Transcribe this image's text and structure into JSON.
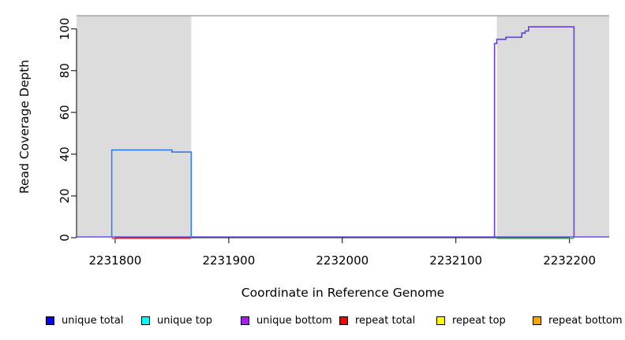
{
  "chart_data": {
    "type": "line",
    "title": "",
    "xlabel": "Coordinate in Reference Genome",
    "ylabel": "Read Coverage Depth",
    "xlim": [
      2231766,
      2232235
    ],
    "ylim": [
      0,
      106.3
    ],
    "x_ticks": [
      2231800,
      2231900,
      2232000,
      2232100,
      2232200
    ],
    "y_ticks": [
      0,
      20,
      40,
      60,
      80,
      100
    ],
    "grid": false,
    "shaded_regions": [
      {
        "name": "repeat-region-left",
        "x0": 2231766,
        "x1": 2231867,
        "color": "#dcdcdc"
      },
      {
        "name": "repeat-region-right",
        "x0": 2232136,
        "x1": 2232235,
        "color": "#dcdcdc"
      }
    ],
    "top_boundary_line": {
      "y": 106.3,
      "color": "#a4a4a4"
    },
    "series": [
      {
        "name": "zero-coverage baseline",
        "role": "baseline",
        "color": "#6b5ce8",
        "points": [
          [
            2231766,
            0
          ],
          [
            2232235,
            0
          ]
        ]
      },
      {
        "name": "repeat total at zero (left region)",
        "role": "sub-baseline",
        "color": "#ee4453",
        "points": [
          [
            2231797,
            0
          ],
          [
            2231867,
            0
          ]
        ]
      },
      {
        "name": "unique top at zero (right region)",
        "role": "sub-baseline",
        "color": "#4fae62",
        "points": [
          [
            2232136,
            0
          ],
          [
            2232204,
            0
          ]
        ]
      },
      {
        "name": "unique coverage block (left)",
        "role": "block",
        "color": "#2f7df5",
        "points": [
          [
            2231797,
            0
          ],
          [
            2231797,
            42
          ],
          [
            2231850,
            42
          ],
          [
            2231850,
            41
          ],
          [
            2231867,
            41
          ],
          [
            2231867,
            0
          ]
        ]
      },
      {
        "name": "unique coverage block (right)",
        "role": "block",
        "color": "#6a3bee",
        "points": [
          [
            2232134,
            0
          ],
          [
            2232134,
            93
          ],
          [
            2232136,
            93
          ],
          [
            2232136,
            95
          ],
          [
            2232144,
            95
          ],
          [
            2232144,
            96
          ],
          [
            2232158,
            96
          ],
          [
            2232158,
            98
          ],
          [
            2232161,
            98
          ],
          [
            2232161,
            99
          ],
          [
            2232164,
            99
          ],
          [
            2232164,
            101
          ],
          [
            2232204,
            101
          ],
          [
            2232204,
            0
          ]
        ]
      }
    ],
    "legend_position": "bottom",
    "legend": [
      {
        "label": "unique total",
        "color": "#0000ff"
      },
      {
        "label": "unique top",
        "color": "#00ffff"
      },
      {
        "label": "unique bottom",
        "color": "#a020f0"
      },
      {
        "label": "repeat total",
        "color": "#ff0000"
      },
      {
        "label": "repeat top",
        "color": "#ffff00"
      },
      {
        "label": "repeat bottom",
        "color": "#ffa500"
      }
    ]
  }
}
